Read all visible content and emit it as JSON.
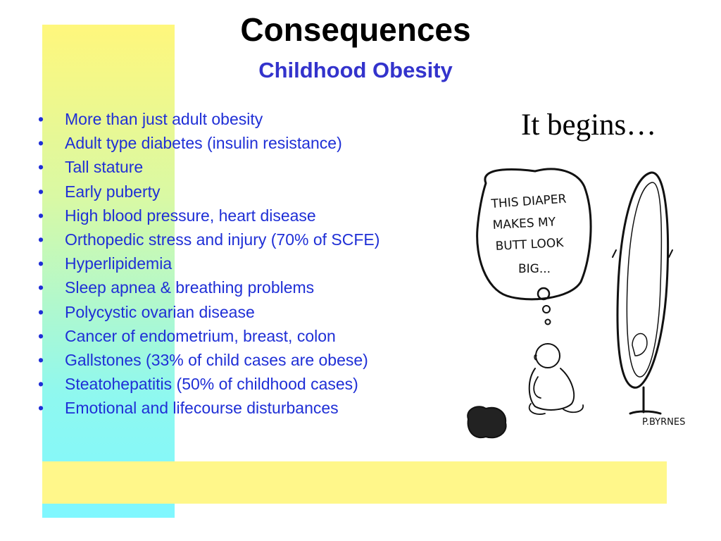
{
  "slide": {
    "title": "Consequences",
    "subtitle": "Childhood Obesity",
    "bullet_symbol": "•",
    "bullets": [
      "More than just adult obesity",
      "Adult type diabetes (insulin resistance)",
      "Tall stature",
      "Early puberty",
      "High blood pressure,  heart disease",
      "Orthopedic stress and injury (70% of SCFE)",
      "Hyperlipidemia",
      "Sleep apnea & breathing problems",
      "Polycystic ovarian disease",
      "Cancer of endometrium, breast, colon",
      "Gallstones (33% of child cases are obese)",
      "Steatohepatitis (50% of childhood cases)",
      "Emotional and lifecourse disturbances"
    ],
    "cartoon_caption": "It begins…",
    "cartoon": {
      "thought_lines": [
        "THIS DIAPER",
        "MAKES MY",
        "BUTT LOOK",
        "BIG..."
      ],
      "signature": "P.BYRNES"
    }
  },
  "colors": {
    "title": "#000000",
    "subtitle": "#3333cc",
    "bullet_text": "#1f2fd6",
    "bar_top": "#fff77c",
    "bar_bottom": "#7ff7ff",
    "horizontal_bar": "#fff78a"
  }
}
